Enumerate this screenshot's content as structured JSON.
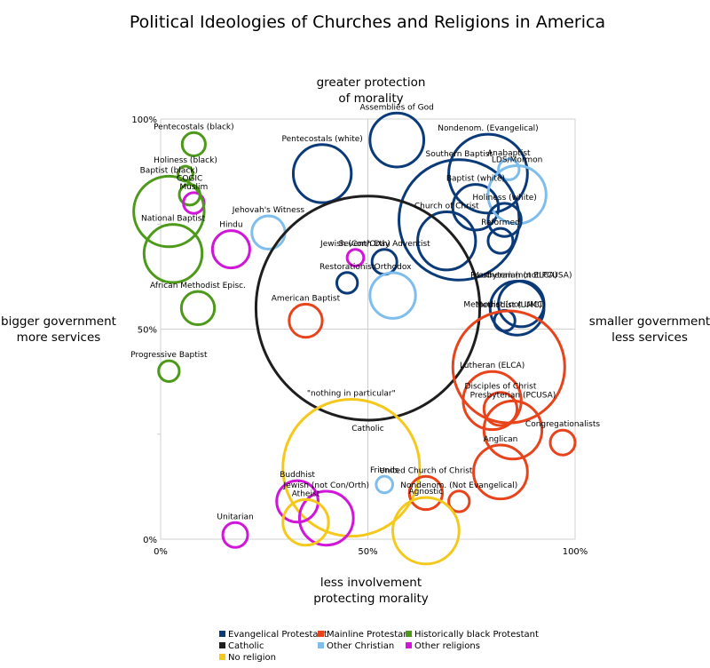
{
  "chart_data": {
    "type": "scatter",
    "title": "Political Ideologies of Churches and Religions in America",
    "axis_labels": {
      "top": [
        "greater protection",
        "of morality"
      ],
      "bottom": [
        "less involvement",
        "protecting morality"
      ],
      "left": [
        "bigger government",
        "more services"
      ],
      "right": [
        "smaller government",
        "less services"
      ]
    },
    "x_ticks": [
      "0%",
      "50%",
      "100%"
    ],
    "y_ticks": [
      "100%",
      "50%",
      "0%"
    ],
    "xlim": [
      0,
      100
    ],
    "ylim": [
      0,
      100
    ],
    "grid": true,
    "legend_position": "bottom",
    "colors": {
      "evangelical": "#0a3a78",
      "catholic": "#1e1e1e",
      "mainline": "#e8441c",
      "other_christian": "#7fbdec",
      "black_protestant": "#4d9a1a",
      "other_religions": "#d016d8",
      "no_religion": "#f5c81c"
    },
    "legend": [
      {
        "group": "evangelical",
        "label": "Evangelical Protestant"
      },
      {
        "group": "mainline",
        "label": "Mainline Protestant"
      },
      {
        "group": "black_protestant",
        "label": "Historically black Protestant"
      },
      {
        "group": "catholic",
        "label": "Catholic"
      },
      {
        "group": "other_christian",
        "label": "Other Christian"
      },
      {
        "group": "other_religions",
        "label": "Other religions"
      },
      {
        "group": "no_religion",
        "label": "No religion"
      }
    ],
    "points": [
      {
        "label": "Assemblies of God",
        "group": "evangelical",
        "x": 57,
        "y": 95,
        "size": 6.5
      },
      {
        "label": "Nondenom. (Evangelical)",
        "group": "evangelical",
        "x": 79,
        "y": 87,
        "size": 9.5
      },
      {
        "label": "Anabaptist",
        "group": "other_christian",
        "x": 84,
        "y": 88,
        "size": 2.5
      },
      {
        "label": "Pentecostals (white)",
        "group": "evangelical",
        "x": 39,
        "y": 87,
        "size": 7
      },
      {
        "label": "Southern Baptist",
        "group": "evangelical",
        "x": 72,
        "y": 76,
        "size": 14.5
      },
      {
        "label": "Baptist (white)",
        "group": "evangelical",
        "x": 76,
        "y": 79,
        "size": 5.5
      },
      {
        "label": "LDS/Mormon",
        "group": "other_christian",
        "x": 86,
        "y": 82,
        "size": 7
      },
      {
        "label": "Holiness (white)",
        "group": "evangelical",
        "x": 83,
        "y": 76,
        "size": 4
      },
      {
        "label": "Church of Christ",
        "group": "evangelical",
        "x": 69,
        "y": 71,
        "size": 7
      },
      {
        "label": "Reformed",
        "group": "evangelical",
        "x": 82,
        "y": 71,
        "size": 3
      },
      {
        "label": "Pentecostals  (black)",
        "group": "black_protestant",
        "x": 8,
        "y": 94,
        "size": 2.8
      },
      {
        "label": "Holiness (black)",
        "group": "black_protestant",
        "x": 6,
        "y": 87,
        "size": 1.8
      },
      {
        "label": "COGIC",
        "group": "black_protestant",
        "x": 7,
        "y": 82,
        "size": 2.5
      },
      {
        "label": "Muslim",
        "group": "other_religions",
        "x": 8,
        "y": 80,
        "size": 2.5
      },
      {
        "label": "Baptist (black)",
        "group": "black_protestant",
        "x": 2,
        "y": 78,
        "size": 8.5
      },
      {
        "label": "Jehovah's Witness",
        "group": "other_christian",
        "x": 26,
        "y": 73,
        "size": 4
      },
      {
        "label": "National Baptist",
        "group": "black_protestant",
        "x": 3,
        "y": 68,
        "size": 7
      },
      {
        "label": "Hindu",
        "group": "other_religions",
        "x": 17,
        "y": 69,
        "size": 4.5
      },
      {
        "label": "Jewish (Con/Orth)",
        "group": "other_religions",
        "x": 47,
        "y": 67,
        "size": 2
      },
      {
        "label": "Seventh Day Adventist",
        "group": "evangelical",
        "x": 54,
        "y": 66,
        "size": 3
      },
      {
        "label": "Restorationist",
        "group": "evangelical",
        "x": 45,
        "y": 61,
        "size": 2.5
      },
      {
        "label": "Orthodox",
        "group": "other_christian",
        "x": 56,
        "y": 58,
        "size": 5.5
      },
      {
        "label": "African Methodist Episc.",
        "group": "black_protestant",
        "x": 9,
        "y": 55,
        "size": 4
      },
      {
        "label": "Catholic",
        "group": "catholic",
        "x": 50,
        "y": 55,
        "size": 27
      },
      {
        "label": "American Baptist",
        "group": "mainline",
        "x": 35,
        "y": 52,
        "size": 4
      },
      {
        "label": "Presbyterian (not PCUSA)",
        "group": "evangelical",
        "x": 87,
        "y": 56,
        "size": 5.5
      },
      {
        "label": "Lutheran (not ELCA)",
        "group": "evangelical",
        "x": 86,
        "y": 55,
        "size": 6.5
      },
      {
        "label": "Methodist (not UMC)",
        "group": "evangelical",
        "x": 83,
        "y": 52,
        "size": 2.5
      },
      {
        "label": "Progressive Baptist",
        "group": "black_protestant",
        "x": 2,
        "y": 40,
        "size": 2.5
      },
      {
        "label": "Methodist (UMC)",
        "group": "mainline",
        "x": 84,
        "y": 41,
        "size": 13.5
      },
      {
        "label": "Lutheran (ELCA)",
        "group": "mainline",
        "x": 80,
        "y": 33,
        "size": 7
      },
      {
        "label": "Disciples of Christ",
        "group": "mainline",
        "x": 82,
        "y": 31,
        "size": 4
      },
      {
        "label": "Presbyterian (PCUSA)",
        "group": "mainline",
        "x": 85,
        "y": 26,
        "size": 7
      },
      {
        "label": "Congregationalists",
        "group": "mainline",
        "x": 97,
        "y": 23,
        "size": 3
      },
      {
        "label": "Anglican",
        "group": "mainline",
        "x": 82,
        "y": 16,
        "size": 6.5
      },
      {
        "label": "\"nothing in particular\"",
        "group": "no_religion",
        "x": 46,
        "y": 17,
        "size": 16.5
      },
      {
        "label": "Friends",
        "group": "other_christian",
        "x": 54,
        "y": 13,
        "size": 2
      },
      {
        "label": "United Church of Christ",
        "group": "mainline",
        "x": 64,
        "y": 11,
        "size": 4
      },
      {
        "label": "Nondenom. (Not Evangelical)",
        "group": "mainline",
        "x": 72,
        "y": 9,
        "size": 2.5
      },
      {
        "label": "Buddhist",
        "group": "other_religions",
        "x": 33,
        "y": 9,
        "size": 5
      },
      {
        "label": "Jewish (not Con/Orth)",
        "group": "other_religions",
        "x": 40,
        "y": 5,
        "size": 6.5
      },
      {
        "label": "Atheist",
        "group": "no_religion",
        "x": 35,
        "y": 4,
        "size": 5.5
      },
      {
        "label": "Agnostic",
        "group": "no_religion",
        "x": 64,
        "y": 2,
        "size": 8
      },
      {
        "label": "Unitarian",
        "group": "other_religions",
        "x": 18,
        "y": 1,
        "size": 3
      }
    ]
  }
}
